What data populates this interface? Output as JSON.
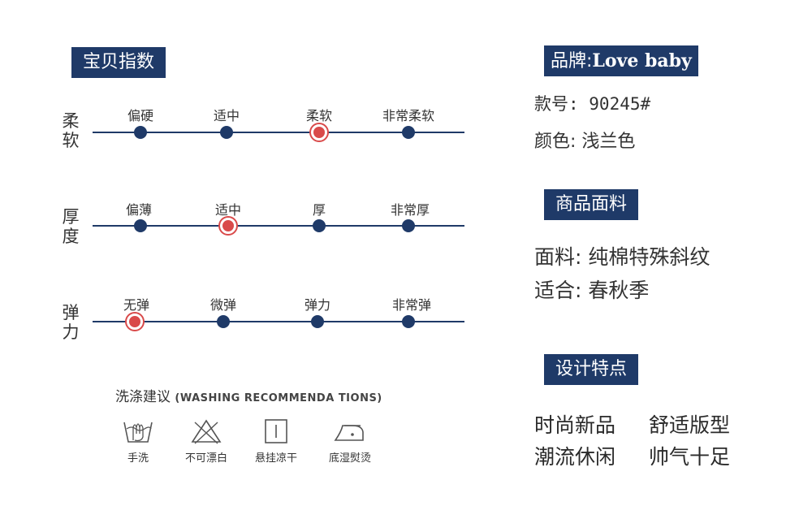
{
  "index_section": {
    "title": "宝贝指数"
  },
  "scales": [
    {
      "label_line1": "柔",
      "label_line2": "软",
      "options": [
        "偏硬",
        "适中",
        "柔软",
        "非常柔软"
      ],
      "selected_index": 2
    },
    {
      "label_line1": "厚",
      "label_line2": "度",
      "options": [
        "偏薄",
        "适中",
        "厚",
        "非常厚"
      ],
      "selected_index": 1
    },
    {
      "label_line1": "弹",
      "label_line2": "力",
      "options": [
        "无弹",
        "微弹",
        "弹力",
        "非常弹"
      ],
      "selected_index": 0
    }
  ],
  "washing": {
    "title": "洗涤建议",
    "subtitle": "(WASHING RECOMMENDA TIONS)",
    "icons": [
      {
        "icon": "hand-wash-icon",
        "label": "手洗"
      },
      {
        "icon": "no-bleach-icon",
        "label": "不可漂白"
      },
      {
        "icon": "hang-dry-icon",
        "label": "悬挂凉干"
      },
      {
        "icon": "iron-icon",
        "label": "底湿熨烫"
      }
    ]
  },
  "product": {
    "brand_label": "品牌:",
    "brand_value": "Love baby",
    "model": "款号: 90245#",
    "color": "颜色: 浅兰色"
  },
  "fabric": {
    "title": "商品面料",
    "material": "面料: 纯棉特殊斜纹",
    "season": "适合: 春秋季"
  },
  "design": {
    "title": "设计特点",
    "features": [
      [
        "时尚新品",
        "舒适版型"
      ],
      [
        "潮流休闲",
        "帅气十足"
      ]
    ]
  },
  "colors": {
    "navy": "#1f3a68",
    "accent_red": "#d94a4a"
  }
}
